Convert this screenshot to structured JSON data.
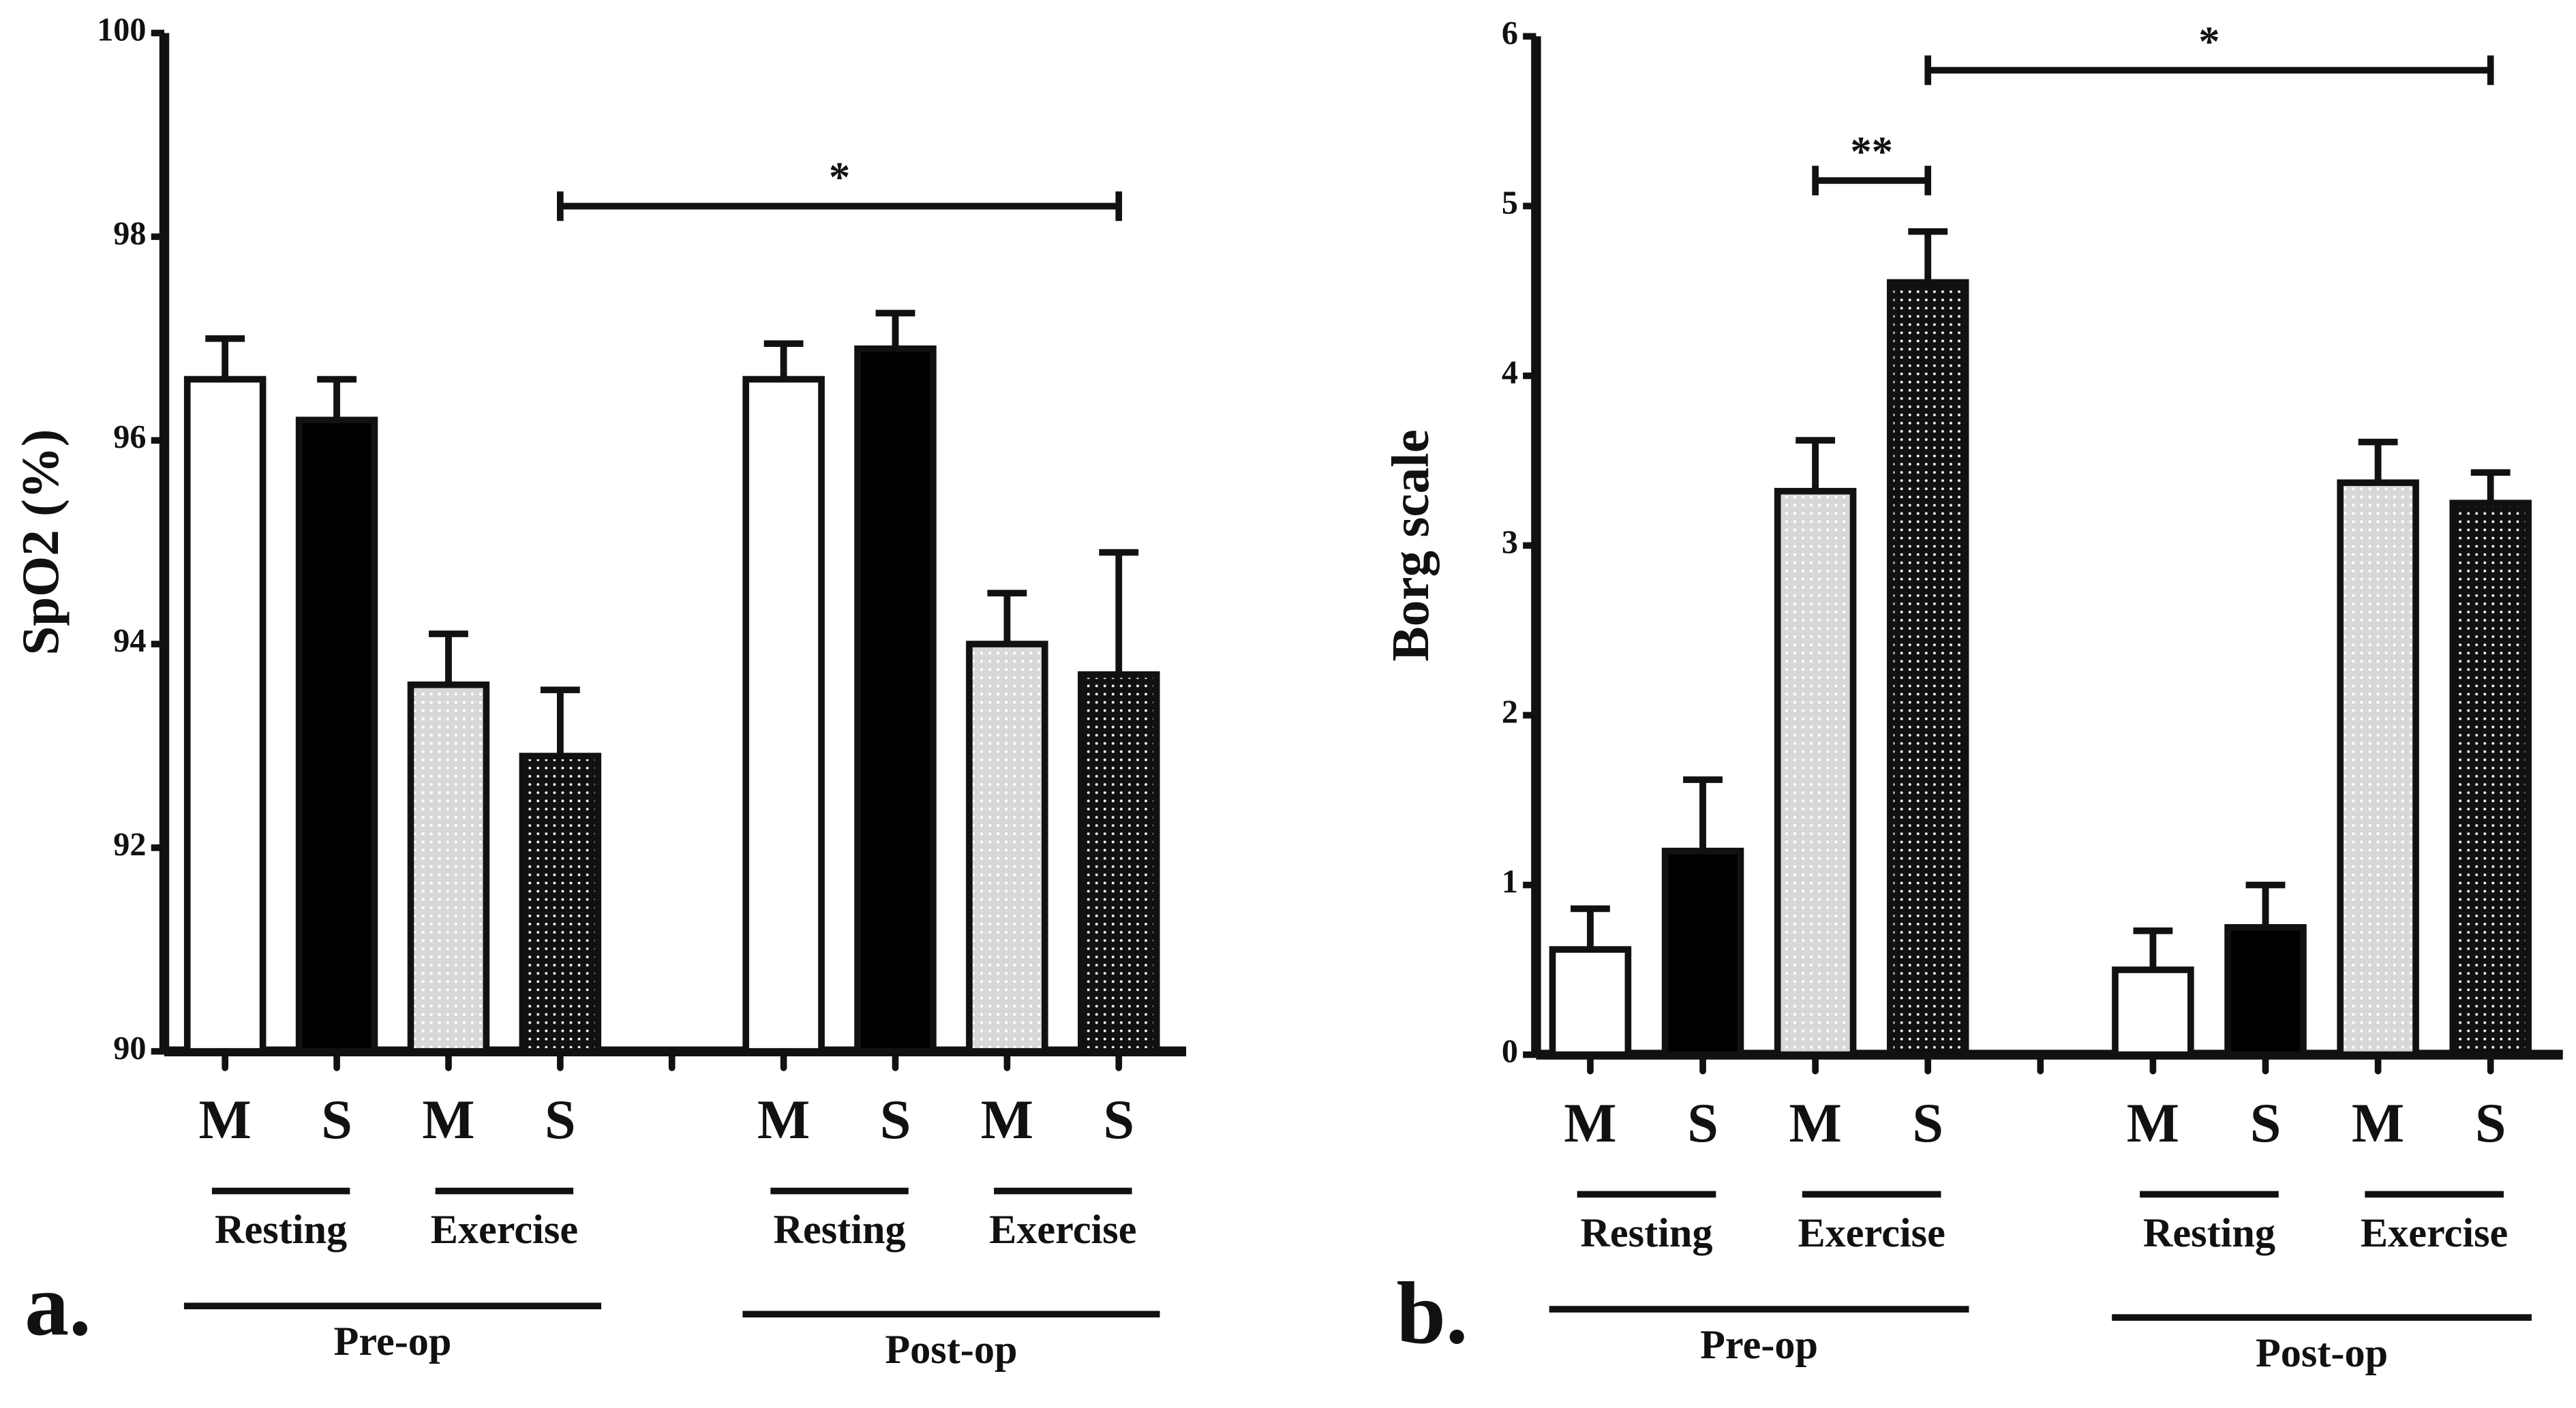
{
  "chart_data": [
    {
      "type": "bar",
      "panel": "a.",
      "y_label": "SpO2 (%)",
      "categories": [
        "M",
        "S",
        "M",
        "S",
        null,
        "M",
        "S",
        "M",
        "S"
      ],
      "values": [
        96.6,
        96.2,
        93.6,
        92.9,
        null,
        96.6,
        96.9,
        94.0,
        93.7
      ],
      "errors": [
        0.4,
        0.4,
        0.5,
        0.65,
        null,
        0.35,
        0.35,
        0.5,
        1.2
      ],
      "fills": [
        "white",
        "black",
        "light-dotted",
        "dark-dotted",
        null,
        "white",
        "black",
        "light-dotted",
        "dark-dotted"
      ],
      "subgroups": [
        "Resting",
        "Exercise",
        "Resting",
        "Exercise"
      ],
      "groups": [
        "Pre-op",
        "Post-op"
      ],
      "annotations": [
        {
          "text": "*",
          "from": 3,
          "to": 8,
          "y": 98.3
        }
      ],
      "ylim": [
        90,
        100
      ],
      "yticks": [
        90,
        92,
        94,
        96,
        98,
        100
      ]
    },
    {
      "type": "bar",
      "panel": "b.",
      "y_label": "Borg scale",
      "categories": [
        "M",
        "S",
        "M",
        "S",
        null,
        "M",
        "S",
        "M",
        "S"
      ],
      "values": [
        0.62,
        1.2,
        3.32,
        4.55,
        null,
        0.5,
        0.75,
        3.37,
        3.25
      ],
      "errors": [
        0.24,
        0.42,
        0.3,
        0.3,
        null,
        0.23,
        0.25,
        0.24,
        0.18
      ],
      "fills": [
        "white",
        "black",
        "light-dotted",
        "dark-dotted",
        null,
        "white",
        "black",
        "light-dotted",
        "dark-dotted"
      ],
      "subgroups": [
        "Resting",
        "Exercise",
        "Resting",
        "Exercise"
      ],
      "groups": [
        "Pre-op",
        "Post-op"
      ],
      "annotations": [
        {
          "text": "**",
          "from": 2,
          "to": 3,
          "y": 5.15
        },
        {
          "text": "*",
          "from": 3,
          "to": 8,
          "y": 5.8
        }
      ],
      "ylim": [
        0,
        6
      ],
      "yticks": [
        0,
        1,
        2,
        3,
        4,
        5,
        6
      ]
    }
  ]
}
